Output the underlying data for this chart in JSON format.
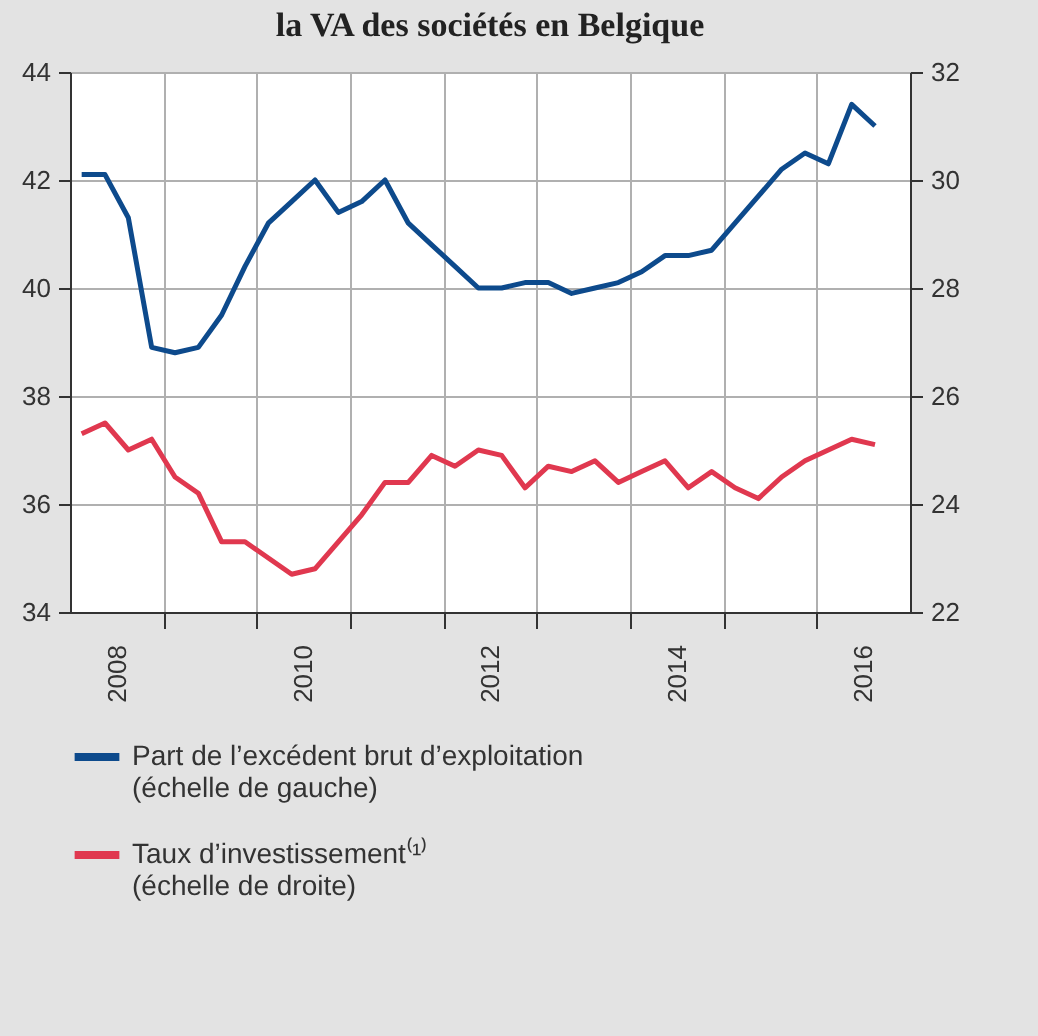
{
  "chart_data": {
    "type": "line",
    "title": "la VA des sociétés en Belgique",
    "x": [
      2008.125,
      2008.375,
      2008.625,
      2008.875,
      2009.125,
      2009.375,
      2009.625,
      2009.875,
      2010.125,
      2010.375,
      2010.625,
      2010.875,
      2011.125,
      2011.375,
      2011.625,
      2011.875,
      2012.125,
      2012.375,
      2012.625,
      2012.875,
      2013.125,
      2013.375,
      2013.625,
      2013.875,
      2014.125,
      2014.375,
      2014.625,
      2014.875,
      2015.125,
      2015.375,
      2015.625,
      2015.875,
      2016.125,
      2016.375,
      2016.625
    ],
    "xlim": [
      2008,
      2017
    ],
    "xticks": [
      {
        "value": 2008.5,
        "label": "2008"
      },
      {
        "value": 2009,
        "label": null
      },
      {
        "value": 2010,
        "label": null
      },
      {
        "value": 2010.5,
        "label": "2010"
      },
      {
        "value": 2011,
        "label": null
      },
      {
        "value": 2012,
        "label": null
      },
      {
        "value": 2012.5,
        "label": "2012"
      },
      {
        "value": 2013,
        "label": null
      },
      {
        "value": 2014,
        "label": null
      },
      {
        "value": 2014.5,
        "label": "2014"
      },
      {
        "value": 2015,
        "label": null
      },
      {
        "value": 2016,
        "label": null
      },
      {
        "value": 2016.5,
        "label": "2016"
      }
    ],
    "ylim": [
      34,
      44
    ],
    "yticks": [
      34,
      36,
      38,
      40,
      42,
      44
    ],
    "y2lim": [
      22,
      32
    ],
    "y2ticks": [
      22,
      24,
      26,
      28,
      30,
      32
    ],
    "grid": true,
    "legend": "bottom",
    "series": [
      {
        "name": "Part de l’excédent brut d’exploitation (échelle de gauche)",
        "color": "#0d4a8c",
        "values": [
          42.1,
          42.1,
          41.3,
          38.9,
          38.8,
          38.9,
          39.5,
          40.4,
          41.2,
          41.6,
          42.0,
          41.4,
          41.6,
          42.0,
          41.2,
          40.8,
          40.4,
          40.0,
          40.0,
          40.1,
          40.1,
          39.9,
          40.0,
          40.1,
          40.3,
          40.6,
          40.6,
          40.7,
          41.2,
          41.7,
          42.2,
          42.5,
          42.3,
          43.4,
          43.0
        ]
      },
      {
        "name": "Taux d’investissement⁽¹⁾ (échelle de droite)",
        "color": "#e0384f",
        "axis": "y2",
        "values": [
          25.3,
          25.5,
          25.0,
          25.2,
          24.5,
          24.2,
          23.3,
          23.3,
          23.0,
          22.7,
          22.8,
          23.3,
          23.8,
          24.4,
          24.4,
          24.9,
          24.7,
          25.0,
          24.9,
          24.3,
          24.7,
          24.6,
          24.8,
          24.4,
          24.6,
          24.8,
          24.3,
          24.6,
          24.3,
          24.1,
          24.5,
          24.8,
          25.0,
          25.2,
          25.1
        ]
      }
    ]
  }
}
